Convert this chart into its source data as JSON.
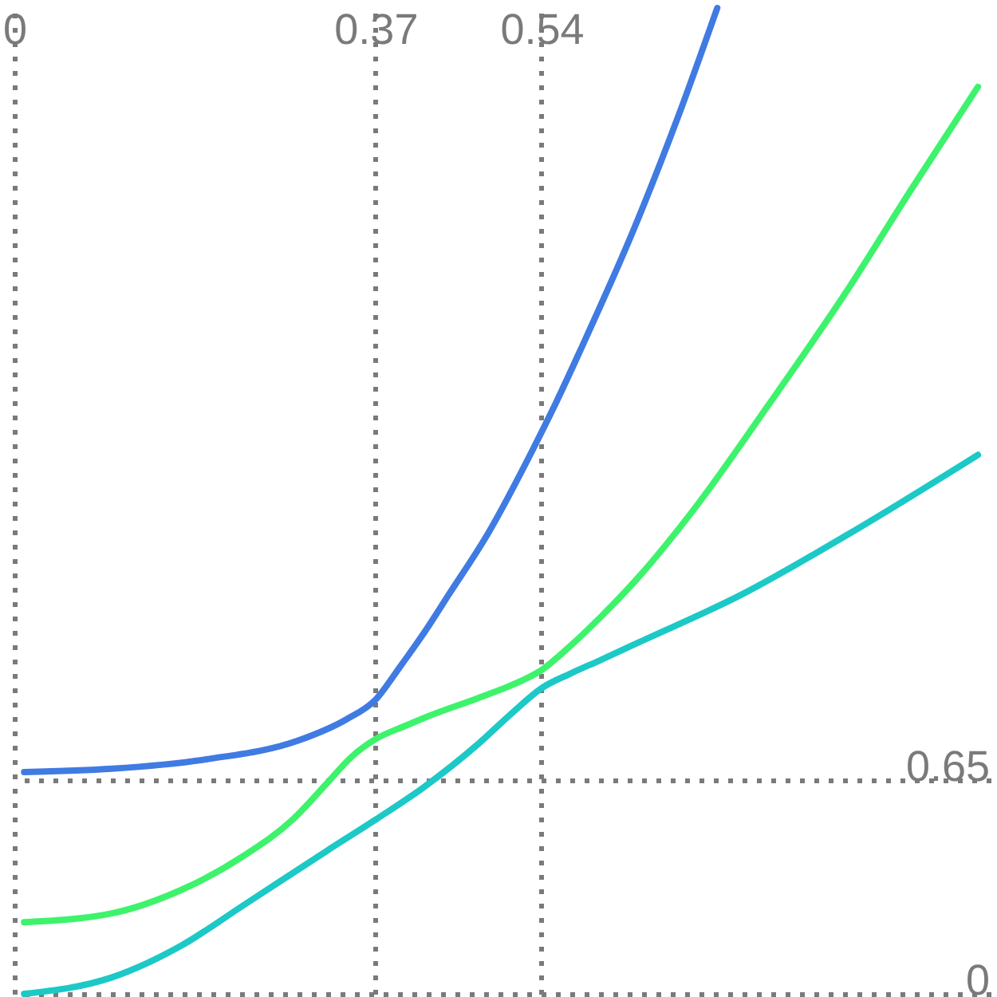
{
  "chart_data": {
    "type": "line",
    "xlim": [
      0,
      1
    ],
    "ylim": [
      0,
      3
    ],
    "xticks": [
      0,
      0.37,
      0.54
    ],
    "yticks": [
      0,
      0.65
    ],
    "grid": true,
    "series": [
      {
        "color": "#3f7be2",
        "x": [
          0.01,
          0.1,
          0.2,
          0.29,
          0.34,
          0.37,
          0.395,
          0.42,
          0.445,
          0.485,
          0.53,
          0.555,
          0.58,
          0.635,
          0.68,
          0.72
        ],
        "values": [
          0.675,
          0.685,
          0.715,
          0.77,
          0.835,
          0.895,
          0.995,
          1.1,
          1.215,
          1.4,
          1.65,
          1.8,
          1.96,
          2.33,
          2.67,
          3.0
        ]
      },
      {
        "color": "#3df36b",
        "x": [
          0.01,
          0.1,
          0.17,
          0.235,
          0.285,
          0.32,
          0.345,
          0.37,
          0.4,
          0.42,
          0.475,
          0.51,
          0.54,
          0.57,
          0.6,
          0.64,
          0.695,
          0.772,
          0.853,
          0.917,
          0.987
        ],
        "values": [
          0.218,
          0.245,
          0.315,
          0.42,
          0.53,
          0.64,
          0.72,
          0.775,
          0.815,
          0.84,
          0.9,
          0.94,
          0.985,
          1.06,
          1.145,
          1.27,
          1.47,
          1.79,
          2.14,
          2.44,
          2.76
        ]
      },
      {
        "color": "#1cc9c6",
        "x": [
          0.01,
          0.1,
          0.17,
          0.235,
          0.32,
          0.37,
          0.42,
          0.475,
          0.51,
          0.54,
          0.57,
          0.6,
          0.64,
          0.745,
          0.855,
          0.987
        ],
        "values": [
          0.0,
          0.05,
          0.145,
          0.27,
          0.435,
          0.53,
          0.63,
          0.76,
          0.855,
          0.93,
          0.975,
          1.015,
          1.07,
          1.215,
          1.4,
          1.64
        ]
      }
    ]
  }
}
